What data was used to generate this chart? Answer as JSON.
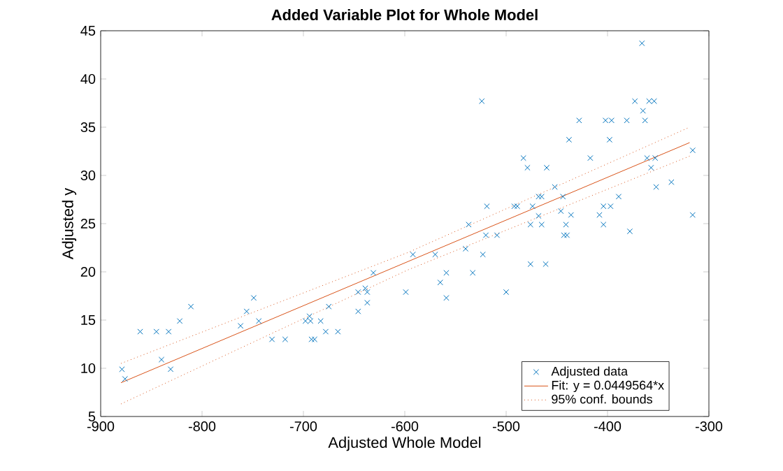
{
  "chart_data": {
    "type": "scatter",
    "title": "Added Variable Plot for Whole Model",
    "xlabel": "Adjusted Whole Model",
    "ylabel": "Adjusted y",
    "xlim": [
      -900,
      -300
    ],
    "ylim": [
      5,
      45
    ],
    "xticks": [
      -900,
      -800,
      -700,
      -600,
      -500,
      -400,
      -300
    ],
    "yticks": [
      5,
      10,
      15,
      20,
      25,
      30,
      35,
      40,
      45
    ],
    "grid": false,
    "legend": "bottom right",
    "series": [
      {
        "name": "Adjusted data",
        "marker": "cross",
        "color": "#0072bd",
        "x": [
          -879,
          -876,
          -861,
          -845,
          -833,
          -840,
          -831,
          -822,
          -811,
          -762,
          -756,
          -749,
          -744,
          -731,
          -718,
          -698,
          -694,
          -693,
          -692,
          -689,
          -683,
          -678,
          -675,
          -666,
          -646,
          -646,
          -639,
          -637,
          -637,
          -631,
          -599,
          -592,
          -570,
          -565,
          -559,
          -559,
          -540,
          -537,
          -533,
          -523,
          -520,
          -509,
          -500,
          -476,
          -476,
          -465,
          -461,
          -446,
          -441,
          -443,
          -440,
          -436,
          -408,
          -404,
          -378,
          -316,
          -366,
          -524,
          -373,
          -359,
          -354,
          -365,
          -428,
          -402,
          -396,
          -381,
          -363,
          -438,
          -398,
          -483,
          -417,
          -361,
          -353,
          -479,
          -460,
          -357,
          -316,
          -452,
          -352,
          -337,
          -468,
          -465,
          -444,
          -389,
          -519,
          -492,
          -489,
          -474,
          -404,
          -397,
          -468
        ],
        "values": [
          9.9,
          8.9,
          13.8,
          13.8,
          13.8,
          10.9,
          9.9,
          14.9,
          16.4,
          14.4,
          15.9,
          17.3,
          14.9,
          13,
          13,
          14.9,
          15.4,
          14.9,
          13,
          13,
          14.9,
          13.8,
          16.4,
          13.8,
          15.9,
          17.9,
          18.3,
          17.9,
          16.8,
          19.9,
          17.9,
          21.8,
          21.8,
          18.9,
          19.9,
          17.3,
          22.4,
          24.9,
          19.9,
          21.8,
          23.8,
          23.8,
          17.9,
          24.9,
          20.8,
          24.9,
          20.8,
          26.3,
          24.9,
          23.8,
          23.8,
          25.9,
          25.9,
          24.9,
          24.2,
          25.9,
          43.7,
          37.7,
          37.7,
          37.7,
          37.7,
          36.7,
          35.7,
          35.7,
          35.7,
          35.7,
          35.7,
          33.7,
          33.7,
          31.8,
          31.8,
          31.8,
          31.8,
          30.8,
          30.8,
          30.8,
          32.6,
          28.8,
          28.8,
          29.3,
          27.8,
          27.8,
          27.8,
          27.8,
          26.8,
          26.8,
          26.8,
          26.8,
          26.8,
          26.8,
          25.8
        ]
      },
      {
        "name": "Fit: y = 0.0449564*x",
        "type": "line",
        "marker": "none",
        "line_style": "solid",
        "color": "#d95319",
        "x": [
          -880,
          -319
        ],
        "values": [
          8.5,
          33.4
        ]
      },
      {
        "name": "95% conf. bounds",
        "type": "line",
        "marker": "none",
        "line_style": "dotted",
        "color": "#d95319",
        "x": [
          -880,
          -597,
          -319
        ],
        "values": [
          10.5,
          22.0,
          35.0
        ]
      },
      {
        "type": "line",
        "marker": "none",
        "line_style": "dotted",
        "color": "#d95319",
        "x": [
          -880,
          -597,
          -319
        ],
        "values": [
          6.3,
          20.2,
          32.0
        ]
      }
    ]
  }
}
